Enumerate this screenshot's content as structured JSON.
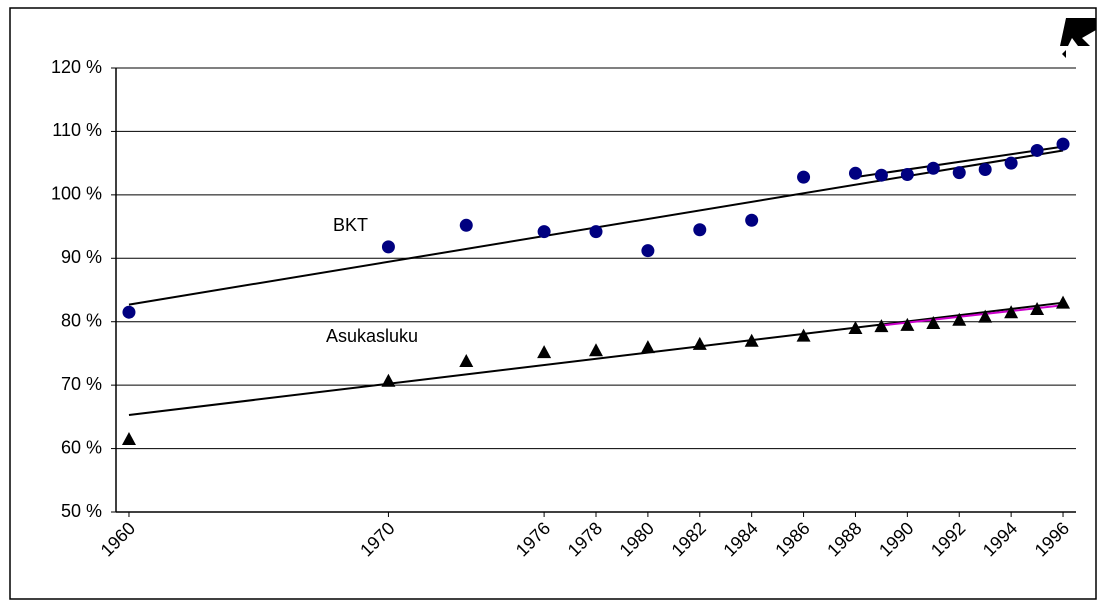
{
  "chart_data": {
    "type": "scatter",
    "x": [
      1960,
      1970,
      1973,
      1976,
      1978,
      1980,
      1982,
      1984,
      1986,
      1988,
      1989,
      1990,
      1991,
      1992,
      1993,
      1994,
      1995,
      1996
    ],
    "series": [
      {
        "name": "BKT",
        "color": "#000080",
        "marker": "circle",
        "values": [
          81.5,
          91.8,
          95.2,
          94.2,
          94.2,
          91.2,
          94.5,
          96,
          102.8,
          103.4,
          103.1,
          103.2,
          104.2,
          103.5,
          104,
          105,
          107,
          108
        ]
      },
      {
        "name": "Asukasluku",
        "color": "#000000",
        "marker": "triangle",
        "values": [
          61.5,
          70.7,
          73.8,
          75.2,
          75.5,
          76,
          76.5,
          77,
          77.8,
          79,
          79.3,
          79.5,
          79.8,
          80.3,
          80.8,
          81.5,
          82,
          83
        ]
      }
    ],
    "trendlines": [
      {
        "color": "#000000",
        "x": [
          1960,
          1996
        ],
        "values": [
          82.7,
          107
        ]
      },
      {
        "color": "#000000",
        "x": [
          1988,
          1996
        ],
        "values": [
          102.8,
          107.6
        ]
      },
      {
        "color": "#000000",
        "x": [
          1960,
          1996
        ],
        "values": [
          65.3,
          83
        ]
      },
      {
        "color": "#cc00cc",
        "x": [
          1989,
          1996
        ],
        "values": [
          79.4,
          82.6
        ]
      }
    ],
    "xlim": [
      1959.5,
      1996.5
    ],
    "xticks": [
      1960,
      1970,
      1976,
      1978,
      1980,
      1982,
      1984,
      1986,
      1988,
      1990,
      1992,
      1994,
      1996
    ],
    "ylim": [
      50,
      120
    ],
    "yticks": [
      {
        "value": 50,
        "label": "50 %"
      },
      {
        "value": 60,
        "label": "60 %"
      },
      {
        "value": 70,
        "label": "70 %"
      },
      {
        "value": 80,
        "label": "80 %"
      },
      {
        "value": 90,
        "label": "90 %"
      },
      {
        "value": 100,
        "label": "100 %"
      },
      {
        "value": 110,
        "label": "110 %"
      },
      {
        "value": 120,
        "label": "120 %"
      }
    ],
    "grid": true
  }
}
